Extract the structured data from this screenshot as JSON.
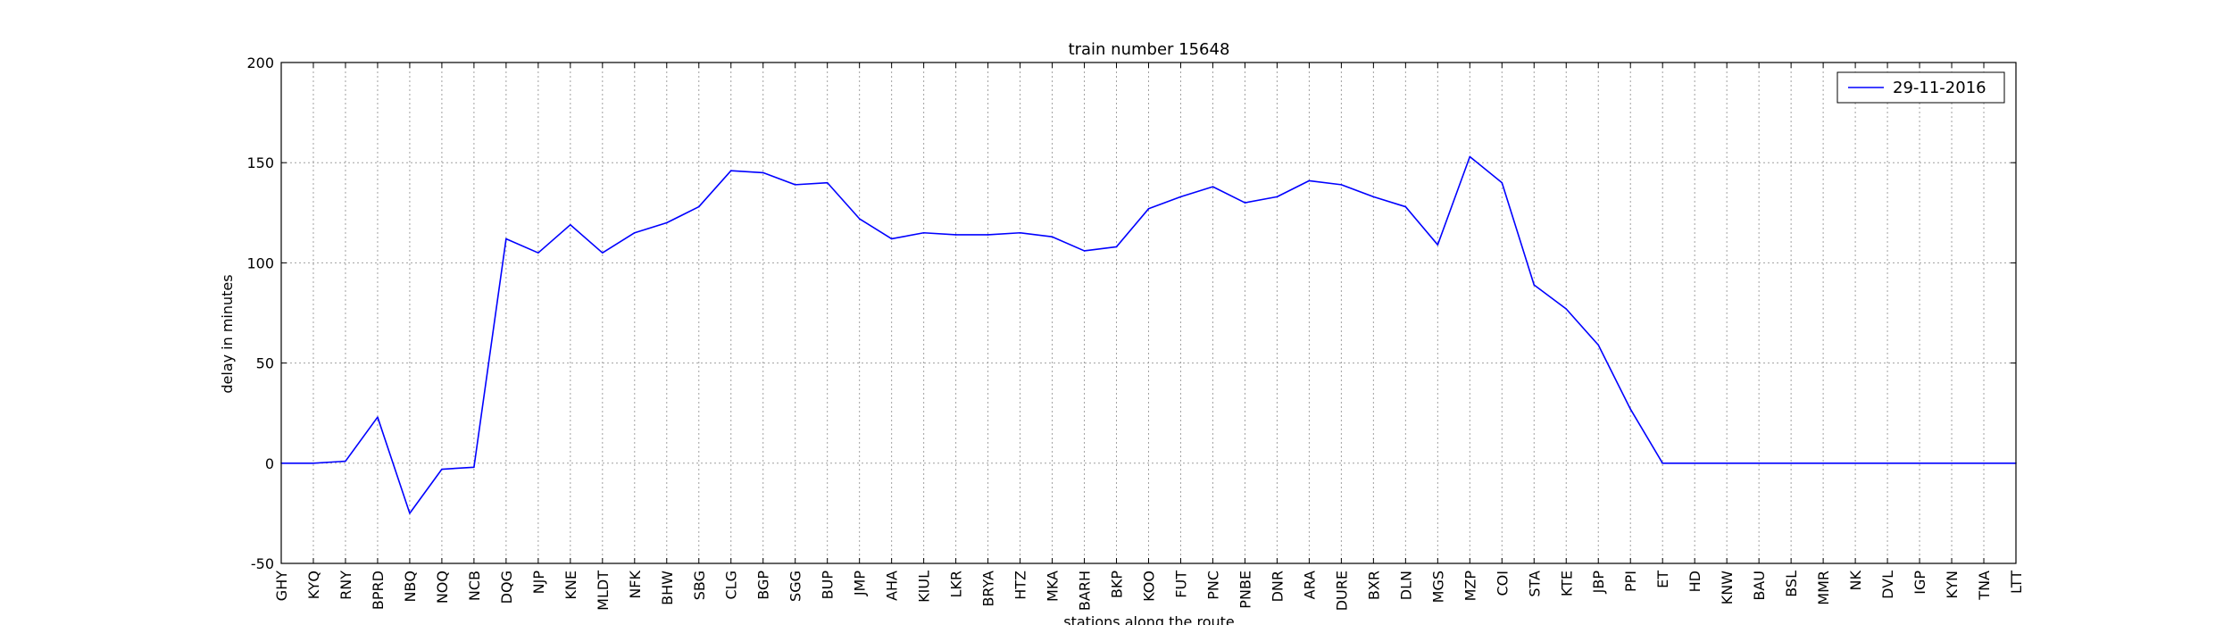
{
  "chart_data": {
    "type": "line",
    "title": "train number 15648",
    "xlabel": "stations along the route",
    "ylabel": "delay in minutes",
    "ylim": [
      -50,
      200
    ],
    "yticks": [
      -50,
      0,
      50,
      100,
      150,
      200
    ],
    "grid": true,
    "legend_position": "top-right",
    "categories": [
      "GHY",
      "KYQ",
      "RNY",
      "BPRD",
      "NBQ",
      "NOQ",
      "NCB",
      "DQG",
      "NJP",
      "KNE",
      "MLDT",
      "NFK",
      "BHW",
      "SBG",
      "CLG",
      "BGP",
      "SGG",
      "BUP",
      "JMP",
      "AHA",
      "KIUL",
      "LKR",
      "BRYA",
      "HTZ",
      "MKA",
      "BARH",
      "BKP",
      "KOO",
      "FUT",
      "PNC",
      "PNBE",
      "DNR",
      "ARA",
      "DURE",
      "BXR",
      "DLN",
      "MGS",
      "MZP",
      "COI",
      "STA",
      "KTE",
      "JBP",
      "PPI",
      "ET",
      "HD",
      "KNW",
      "BAU",
      "BSL",
      "MMR",
      "NK",
      "DVL",
      "IGP",
      "KYN",
      "TNA",
      "LTT"
    ],
    "series": [
      {
        "name": "29-11-2016",
        "color": "#0000ff",
        "values": [
          0,
          0,
          1,
          23,
          -25,
          -3,
          -2,
          112,
          105,
          119,
          105,
          115,
          120,
          128,
          146,
          145,
          139,
          140,
          122,
          112,
          115,
          114,
          114,
          115,
          113,
          106,
          108,
          127,
          133,
          138,
          130,
          133,
          141,
          139,
          133,
          128,
          109,
          153,
          140,
          89,
          77,
          59,
          27,
          0,
          0,
          0,
          0,
          0,
          0,
          0,
          0,
          0,
          0,
          0,
          0
        ]
      }
    ]
  }
}
